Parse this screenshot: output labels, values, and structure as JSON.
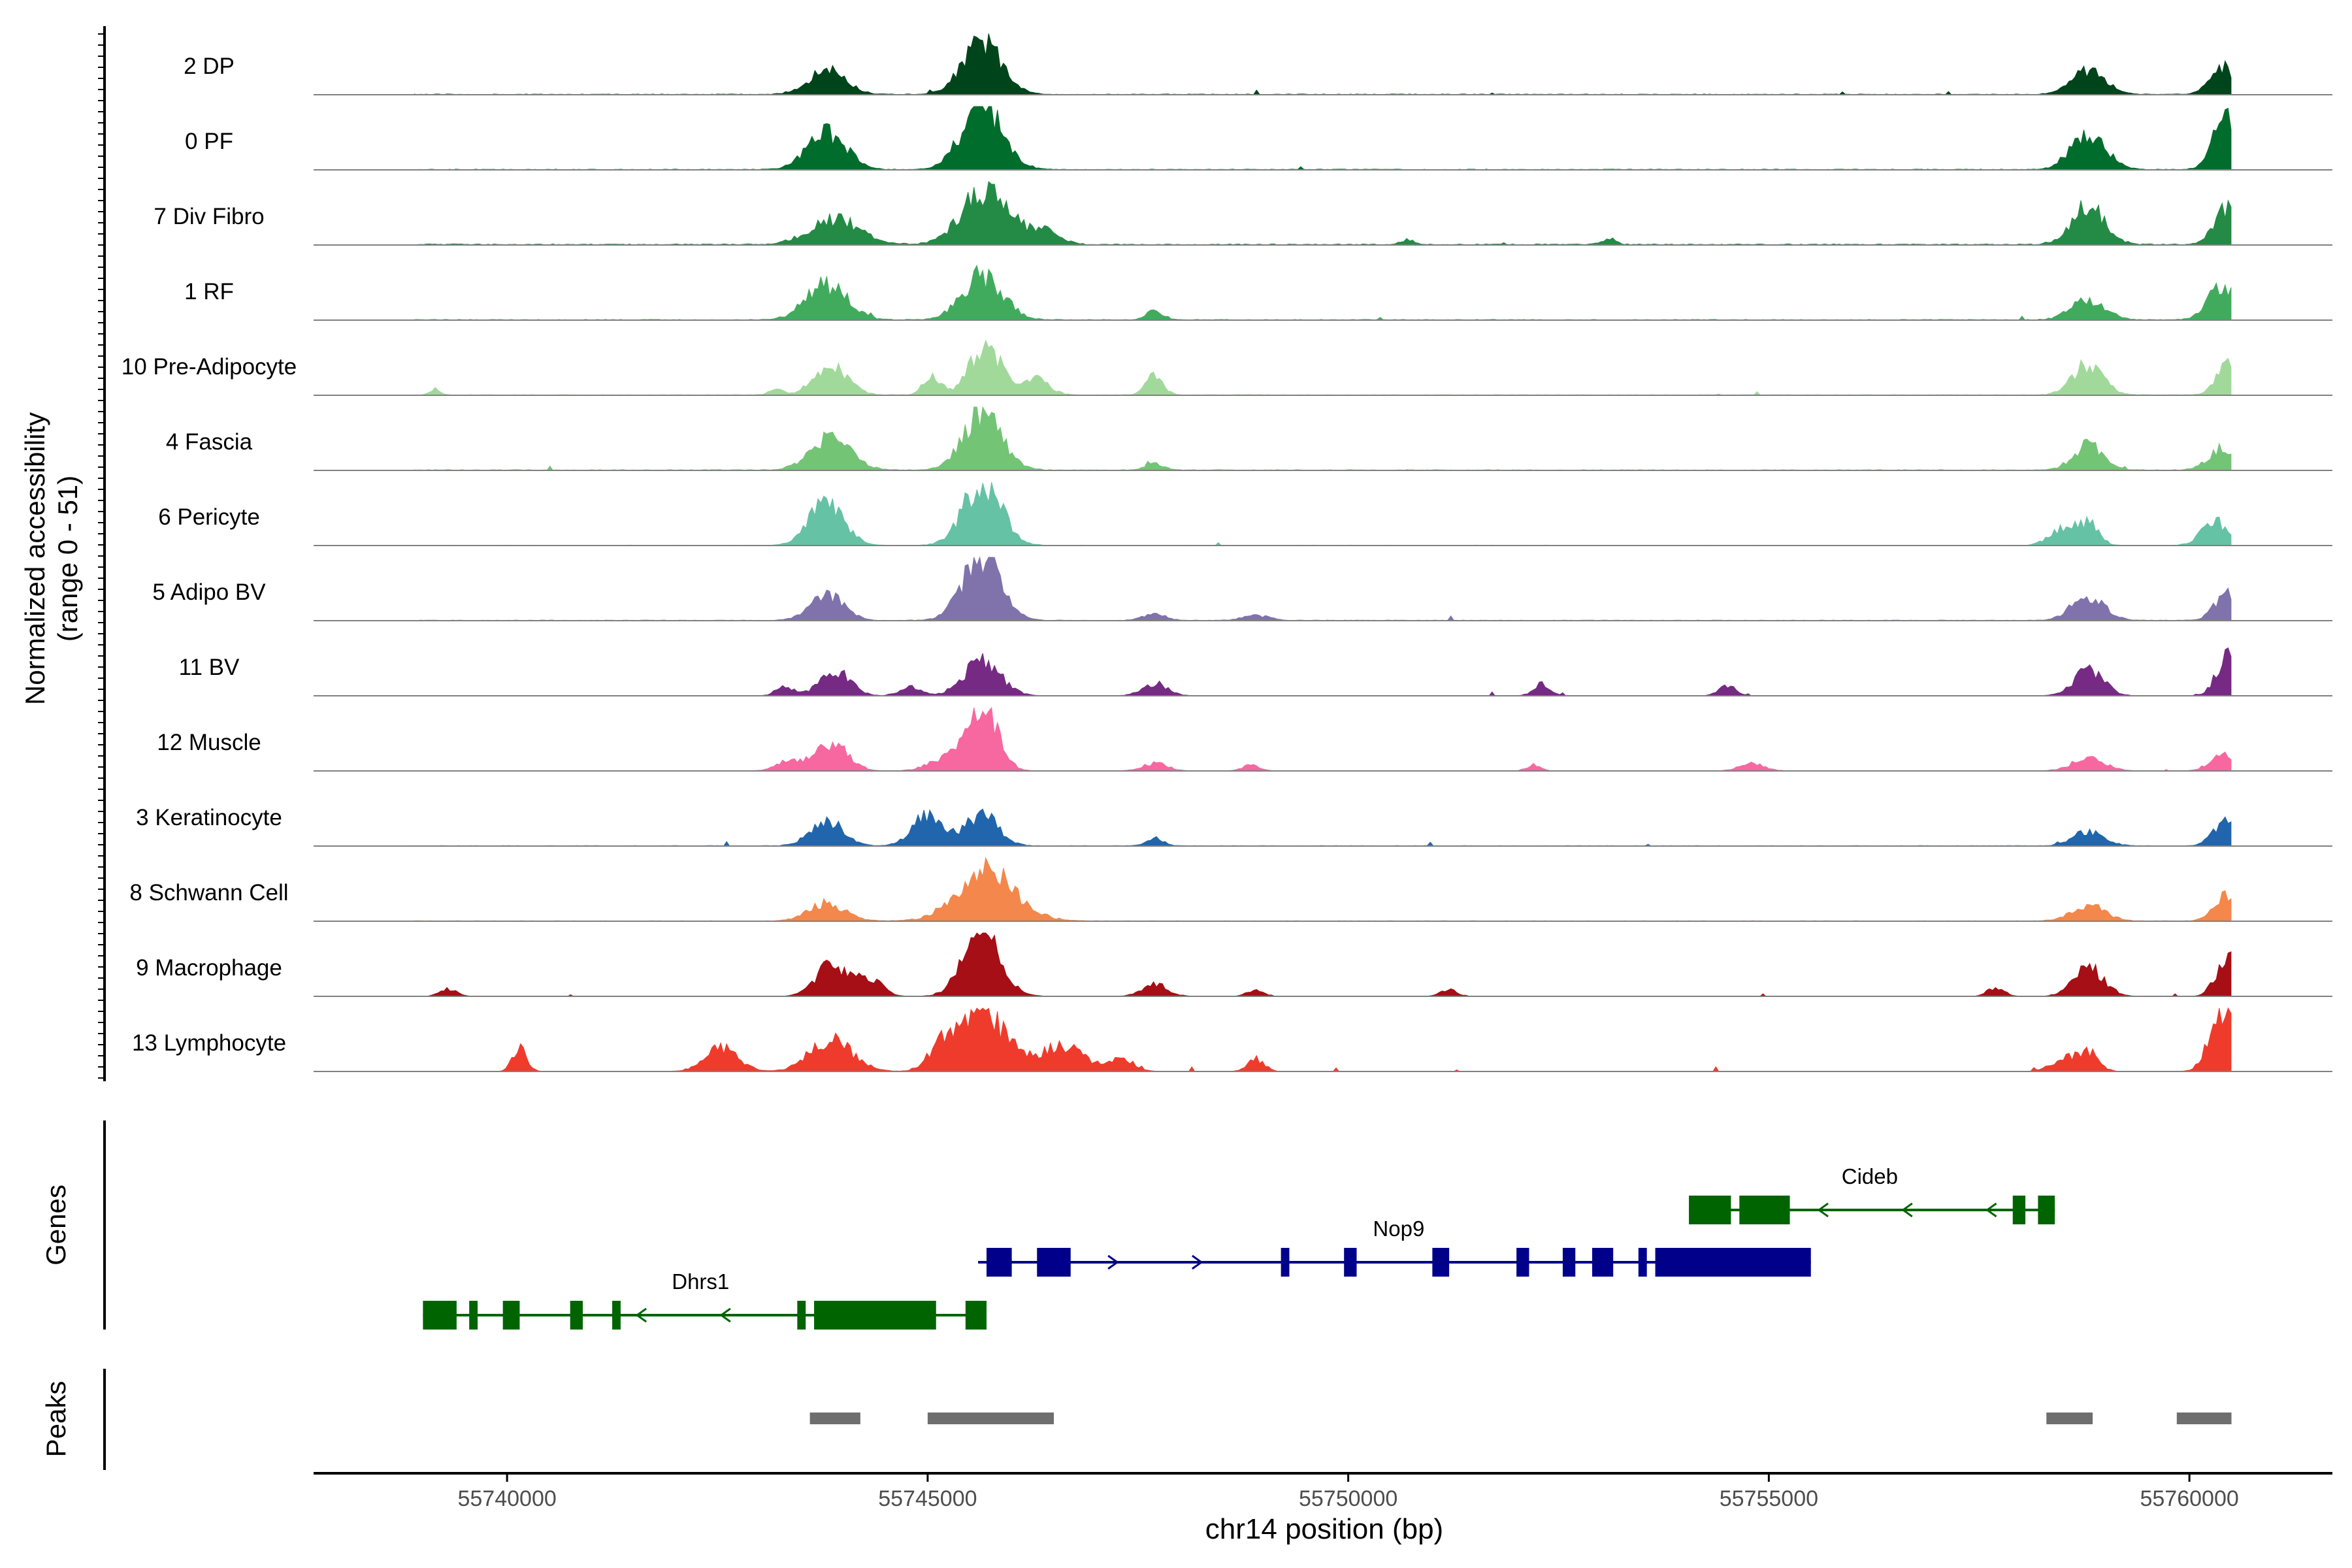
{
  "chart_data": {
    "type": "area",
    "title": "",
    "chromosome": "chr14",
    "xlabel": "chr14 position (bp)",
    "xlim": [
      55737700,
      55761700
    ],
    "xticks": [
      55740000,
      55745000,
      55750000,
      55755000,
      55760000
    ],
    "xtick_labels": [
      "55740000",
      "55745000",
      "55750000",
      "55755000",
      "55760000"
    ],
    "ylabel_line1": "Normalized accessibility",
    "ylabel_line2": "(range 0 - 51)",
    "ylim": [
      0,
      51
    ],
    "series": [
      {
        "name": "2 DP",
        "color": "#00441b",
        "baseline": 0.6,
        "spread": 22,
        "peaks": [
          [
            55743800,
            19,
            220
          ],
          [
            55745650,
            41,
            230
          ],
          [
            55758800,
            20,
            200
          ],
          [
            55760400,
            22,
            150
          ]
        ]
      },
      {
        "name": "0 PF",
        "color": "#006d2c",
        "baseline": 0.6,
        "spread": 22,
        "peaks": [
          [
            55743800,
            29,
            230
          ],
          [
            55745650,
            50,
            240
          ],
          [
            55758800,
            30,
            200
          ],
          [
            55760450,
            45,
            150
          ]
        ]
      },
      {
        "name": "7 Div Fibro",
        "color": "#238b45",
        "baseline": 0.9,
        "spread": 28,
        "peaks": [
          [
            55743900,
            20,
            300
          ],
          [
            55745700,
            45,
            280
          ],
          [
            55746400,
            10,
            180
          ],
          [
            55758800,
            30,
            200
          ],
          [
            55760450,
            28,
            150
          ],
          [
            55750700,
            4,
            80
          ],
          [
            55753100,
            5,
            80
          ]
        ]
      },
      {
        "name": "1 RF",
        "color": "#41ab5d",
        "baseline": 0.6,
        "spread": 20,
        "peaks": [
          [
            55743800,
            28,
            240
          ],
          [
            55745650,
            35,
            240
          ],
          [
            55747700,
            7,
            100
          ],
          [
            55758800,
            16,
            200
          ],
          [
            55760400,
            28,
            170
          ]
        ]
      },
      {
        "name": "10 Pre-Adipocyte",
        "color": "#a1d99b",
        "baseline": 0.5,
        "spread": 26,
        "peaks": [
          [
            55743850,
            23,
            200
          ],
          [
            55745050,
            15,
            100
          ],
          [
            55745700,
            38,
            200
          ],
          [
            55746300,
            12,
            150
          ],
          [
            55747700,
            16,
            100
          ],
          [
            55739150,
            5,
            60
          ],
          [
            55743200,
            5,
            80
          ],
          [
            55758800,
            25,
            180
          ],
          [
            55760500,
            30,
            150
          ]
        ]
      },
      {
        "name": "4 Fascia",
        "color": "#74c476",
        "baseline": 0.6,
        "spread": 22,
        "peaks": [
          [
            55743850,
            26,
            240
          ],
          [
            55745650,
            44,
            230
          ],
          [
            55747700,
            6,
            100
          ],
          [
            55758800,
            20,
            180
          ],
          [
            55760400,
            17,
            170
          ]
        ]
      },
      {
        "name": "6 Pericyte",
        "color": "#66c2a5",
        "baseline": 0.3,
        "spread": 20,
        "peaks": [
          [
            55743800,
            36,
            200
          ],
          [
            55745650,
            51,
            220
          ],
          [
            55758500,
            13,
            160
          ],
          [
            55758800,
            17,
            120
          ],
          [
            55760300,
            20,
            150
          ]
        ]
      },
      {
        "name": "5 Adipo BV",
        "color": "#8073ac",
        "baseline": 0.5,
        "spread": 24,
        "peaks": [
          [
            55743800,
            20,
            200
          ],
          [
            55745650,
            51,
            230
          ],
          [
            55758800,
            20,
            190
          ],
          [
            55760450,
            20,
            150
          ],
          [
            55747700,
            5,
            140
          ],
          [
            55748900,
            4,
            150
          ]
        ]
      },
      {
        "name": "11 BV",
        "color": "#762a83",
        "baseline": 0.0,
        "spread": 34,
        "peaks": [
          [
            55743900,
            20,
            180
          ],
          [
            55745650,
            27,
            220
          ],
          [
            55747700,
            10,
            150
          ],
          [
            55744800,
            8,
            120
          ],
          [
            55752300,
            9,
            100
          ],
          [
            55754500,
            9,
            100
          ],
          [
            55758800,
            20,
            180
          ],
          [
            55760450,
            30,
            130
          ],
          [
            55743300,
            8,
            100
          ]
        ]
      },
      {
        "name": "12 Muscle",
        "color": "#f768a1",
        "baseline": 0.0,
        "spread": 22,
        "peaks": [
          [
            55743850,
            22,
            200
          ],
          [
            55745650,
            51,
            180
          ],
          [
            55743350,
            8,
            150
          ],
          [
            55745200,
            9,
            200
          ],
          [
            55747700,
            6,
            150
          ],
          [
            55748850,
            5,
            100
          ],
          [
            55752200,
            5,
            80
          ],
          [
            55754800,
            6,
            150
          ],
          [
            55758800,
            10,
            200
          ],
          [
            55760400,
            14,
            150
          ]
        ]
      },
      {
        "name": "3 Keratinocyte",
        "color": "#2166ac",
        "baseline": 0.4,
        "spread": 24,
        "peaks": [
          [
            55743800,
            20,
            190
          ],
          [
            55745000,
            27,
            180
          ],
          [
            55745650,
            26,
            190
          ],
          [
            55747700,
            6,
            100
          ],
          [
            55758800,
            12,
            180
          ],
          [
            55760450,
            20,
            150
          ]
        ]
      },
      {
        "name": "8 Schwann Cell",
        "color": "#f4874b",
        "baseline": 0.4,
        "spread": 24,
        "peaks": [
          [
            55743800,
            14,
            220
          ],
          [
            55745700,
            40,
            340
          ],
          [
            55758800,
            12,
            200
          ],
          [
            55760450,
            20,
            150
          ]
        ]
      },
      {
        "name": "9 Macrophage",
        "color": "#a50f15",
        "baseline": 0.0,
        "spread": 32,
        "peaks": [
          [
            55743850,
            26,
            180
          ],
          [
            55744300,
            14,
            150
          ],
          [
            55745650,
            51,
            220
          ],
          [
            55747700,
            10,
            150
          ],
          [
            55739300,
            6,
            100
          ],
          [
            55748900,
            5,
            100
          ],
          [
            55751200,
            5,
            100
          ],
          [
            55757700,
            7,
            100
          ],
          [
            55758800,
            23,
            180
          ],
          [
            55760450,
            30,
            130
          ]
        ]
      },
      {
        "name": "13 Lymphocyte",
        "color": "#ef3b2c",
        "baseline": 0.0,
        "spread": 34,
        "peaks": [
          [
            55740150,
            20,
            80
          ],
          [
            55742550,
            18,
            200
          ],
          [
            55743850,
            25,
            250
          ],
          [
            55745150,
            14,
            150
          ],
          [
            55745650,
            45,
            300
          ],
          [
            55746600,
            20,
            250
          ],
          [
            55747300,
            10,
            150
          ],
          [
            55748900,
            10,
            100
          ],
          [
            55758500,
            10,
            150
          ],
          [
            55758800,
            15,
            120
          ],
          [
            55760400,
            50,
            150
          ]
        ]
      }
    ],
    "genes": [
      {
        "name": "Dhrs1",
        "strand": "-",
        "color": "#006400",
        "start": 55739000,
        "end": 55745700,
        "row": 2,
        "exons": [
          [
            55739000,
            55739400,
            "cds"
          ],
          [
            55739550,
            55739650,
            "cds"
          ],
          [
            55739950,
            55740150,
            "cds"
          ],
          [
            55740750,
            55740900,
            "cds"
          ],
          [
            55741250,
            55741350,
            "cds"
          ],
          [
            55743450,
            55743550,
            "cds"
          ],
          [
            55743650,
            55745100,
            "cds"
          ],
          [
            55745450,
            55745700,
            "cds"
          ]
        ]
      },
      {
        "name": "Nop9",
        "strand": "+",
        "color": "#00008b",
        "start": 55745600,
        "end": 55755500,
        "row": 1,
        "exons": [
          [
            55745700,
            55746000,
            "cds"
          ],
          [
            55746300,
            55746700,
            "cds"
          ],
          [
            55749200,
            55749300,
            "cds"
          ],
          [
            55749950,
            55750100,
            "cds"
          ],
          [
            55751000,
            55751200,
            "cds"
          ],
          [
            55752000,
            55752150,
            "cds"
          ],
          [
            55752550,
            55752700,
            "cds"
          ],
          [
            55752900,
            55753150,
            "cds"
          ],
          [
            55753450,
            55753550,
            "cds"
          ],
          [
            55753650,
            55755500,
            "cds"
          ]
        ]
      },
      {
        "name": "Cideb",
        "strand": "-",
        "color": "#006400",
        "start": 55754050,
        "end": 55758400,
        "row": 0,
        "exons": [
          [
            55754050,
            55754550,
            "cds"
          ],
          [
            55754650,
            55755250,
            "cds"
          ],
          [
            55757900,
            55758050,
            "cds"
          ],
          [
            55758200,
            55758400,
            "cds"
          ]
        ]
      }
    ],
    "peaks_track": [
      [
        55743600,
        55744200
      ],
      [
        55745000,
        55746500
      ],
      [
        55758300,
        55758850
      ],
      [
        55759850,
        55760500
      ]
    ],
    "gene_track_label": "Genes",
    "peak_track_label": "Peaks"
  }
}
